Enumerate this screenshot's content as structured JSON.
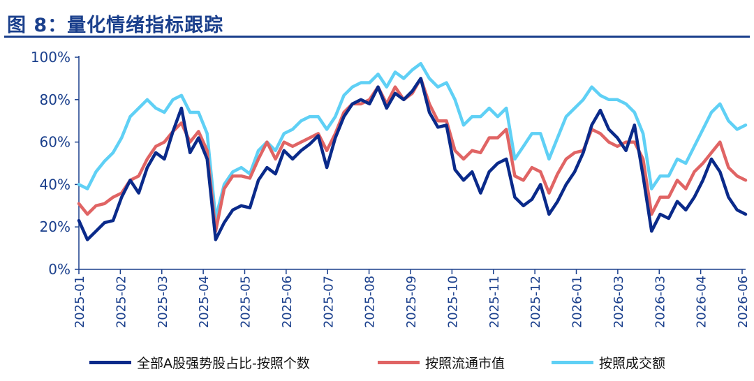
{
  "title": "图 8：量化情绪指标跟踪",
  "colors": {
    "title": "#1a3f8c",
    "axis": "#1a3f8c",
    "dark_blue": "#0a2a8a",
    "red": "#e06464",
    "light_blue": "#5fd0f5"
  },
  "chart_data": {
    "type": "line",
    "ylim": [
      0,
      100
    ],
    "y_unit": "%",
    "y_ticks": [
      "0%",
      "20%",
      "40%",
      "60%",
      "80%",
      "100%"
    ],
    "x_tick_labels": [
      "2025-01",
      "2025-02",
      "2025-03",
      "2025-04",
      "2025-05",
      "2025-06",
      "2025-07",
      "2025-08",
      "2025-09",
      "2025-10",
      "2025-11",
      "2025-12",
      "2026-01",
      "2026-03",
      "2026-03",
      "2026-04",
      "2026-06"
    ],
    "grid": false,
    "legend_position": "bottom",
    "series": [
      {
        "name": "全部A股强势股占比-按照个数",
        "color": "#0a2a8a",
        "values": [
          23,
          14,
          18,
          22,
          23,
          34,
          42,
          36,
          48,
          55,
          52,
          65,
          76,
          55,
          62,
          52,
          14,
          22,
          28,
          30,
          29,
          42,
          48,
          45,
          56,
          52,
          56,
          59,
          63,
          48,
          62,
          72,
          78,
          80,
          78,
          86,
          76,
          83,
          80,
          84,
          90,
          74,
          67,
          68,
          47,
          42,
          46,
          36,
          46,
          50,
          52,
          34,
          30,
          33,
          40,
          26,
          32,
          40,
          46,
          55,
          68,
          75,
          66,
          62,
          56,
          68,
          44,
          18,
          26,
          24,
          32,
          28,
          34,
          42,
          52,
          46,
          34,
          28,
          26
        ]
      },
      {
        "name": "按照流通市值",
        "color": "#e06464",
        "values": [
          31,
          26,
          30,
          31,
          34,
          36,
          42,
          44,
          52,
          58,
          60,
          65,
          69,
          60,
          65,
          56,
          18,
          38,
          44,
          44,
          43,
          52,
          60,
          52,
          60,
          58,
          60,
          62,
          64,
          56,
          64,
          74,
          78,
          78,
          80,
          86,
          78,
          86,
          80,
          83,
          90,
          78,
          70,
          70,
          56,
          52,
          56,
          55,
          62,
          62,
          66,
          44,
          42,
          48,
          46,
          36,
          45,
          52,
          55,
          56,
          66,
          64,
          60,
          58,
          60,
          60,
          52,
          26,
          34,
          34,
          42,
          38,
          46,
          50,
          55,
          60,
          48,
          44,
          42
        ]
      },
      {
        "name": "按照成交额",
        "color": "#5fd0f5",
        "values": [
          40,
          38,
          46,
          51,
          55,
          62,
          72,
          76,
          80,
          76,
          74,
          80,
          82,
          74,
          74,
          64,
          24,
          40,
          46,
          48,
          45,
          56,
          60,
          56,
          64,
          66,
          70,
          72,
          72,
          66,
          72,
          82,
          86,
          88,
          88,
          92,
          86,
          93,
          90,
          94,
          97,
          90,
          86,
          88,
          80,
          68,
          72,
          72,
          76,
          72,
          76,
          52,
          58,
          64,
          64,
          52,
          62,
          72,
          76,
          80,
          86,
          82,
          80,
          80,
          78,
          74,
          64,
          38,
          44,
          44,
          52,
          50,
          58,
          66,
          74,
          78,
          70,
          66,
          68
        ]
      }
    ]
  }
}
